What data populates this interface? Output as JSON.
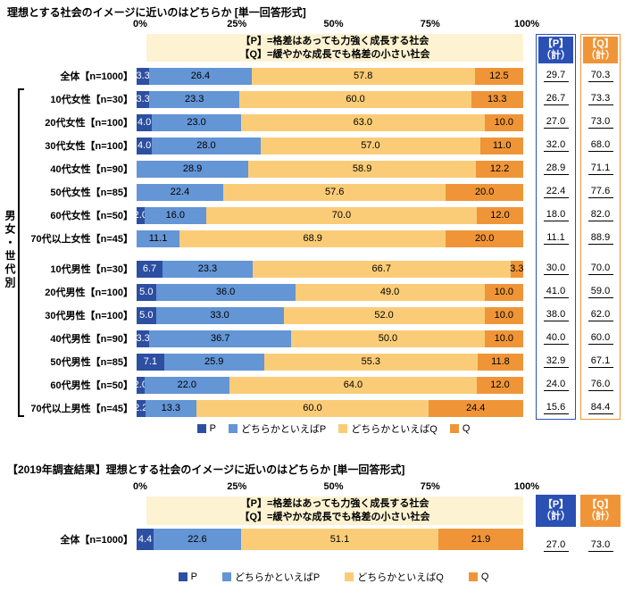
{
  "colors": {
    "series": [
      "#2d4fa2",
      "#6495d5",
      "#fbcc77",
      "#ef9538"
    ],
    "p_header": "#2b50b4",
    "q_header": "#ef9538",
    "note_bg": "#fdf3d2",
    "seg_label_on_dark": "#ffffff",
    "seg_label": "#000000"
  },
  "chart_data": [
    {
      "type": "bar",
      "stacked": true,
      "orientation": "horizontal",
      "title": "理想とする社会のイメージに近いのはどちらか [単一回答形式]",
      "x_ticks": [
        "0%",
        "25%",
        "50%",
        "75%",
        "100%"
      ],
      "xlim": [
        0,
        100
      ],
      "note_lines": [
        "【P】=格差はあっても力強く成長する社会",
        "【Q】=緩やかな成長でも格差の小さい社会"
      ],
      "series_names": [
        "P",
        "どちらかといえばP",
        "どちらかといえばQ",
        "Q"
      ],
      "legend": [
        "P",
        "どちらかといえばP",
        "どちらかといえばQ",
        "Q"
      ],
      "group_label": "男女・世代別",
      "p_total_header": [
        "【P】",
        "（計）"
      ],
      "q_total_header": [
        "【Q】",
        "（計）"
      ],
      "rows": [
        {
          "label": "全体【n=1000】",
          "values": [
            3.3,
            26.4,
            57.8,
            12.5
          ],
          "p_total": "29.7",
          "q_total": "70.3"
        },
        {
          "label": "10代女性【n=30】",
          "values": [
            3.3,
            23.3,
            60.0,
            13.3
          ],
          "p_total": "26.7",
          "q_total": "73.3"
        },
        {
          "label": "20代女性【n=100】",
          "values": [
            4.0,
            23.0,
            63.0,
            10.0
          ],
          "p_total": "27.0",
          "q_total": "73.0"
        },
        {
          "label": "30代女性【n=100】",
          "values": [
            4.0,
            28.0,
            57.0,
            11.0
          ],
          "p_total": "32.0",
          "q_total": "68.0"
        },
        {
          "label": "40代女性【n=90】",
          "values": [
            0,
            28.9,
            58.9,
            12.2
          ],
          "p_total": "28.9",
          "q_total": "71.1"
        },
        {
          "label": "50代女性【n=85】",
          "values": [
            0,
            22.4,
            57.6,
            20.0
          ],
          "p_total": "22.4",
          "q_total": "77.6"
        },
        {
          "label": "60代女性【n=50】",
          "values": [
            2.0,
            16.0,
            70.0,
            12.0
          ],
          "p_total": "18.0",
          "q_total": "82.0"
        },
        {
          "label": "70代以上女性【n=45】",
          "values": [
            0,
            11.1,
            68.9,
            20.0
          ],
          "p_total": "11.1",
          "q_total": "88.9"
        },
        {
          "label": "10代男性【n=30】",
          "values": [
            6.7,
            23.3,
            66.7,
            3.3
          ],
          "p_total": "30.0",
          "q_total": "70.0",
          "gap": true
        },
        {
          "label": "20代男性【n=100】",
          "values": [
            5.0,
            36.0,
            49.0,
            10.0
          ],
          "p_total": "41.0",
          "q_total": "59.0"
        },
        {
          "label": "30代男性【n=100】",
          "values": [
            5.0,
            33.0,
            52.0,
            10.0
          ],
          "p_total": "38.0",
          "q_total": "62.0"
        },
        {
          "label": "40代男性【n=90】",
          "values": [
            3.3,
            36.7,
            50.0,
            10.0
          ],
          "p_total": "40.0",
          "q_total": "60.0"
        },
        {
          "label": "50代男性【n=85】",
          "values": [
            7.1,
            25.9,
            55.3,
            11.8
          ],
          "p_total": "32.9",
          "q_total": "67.1"
        },
        {
          "label": "60代男性【n=50】",
          "values": [
            2.0,
            22.0,
            64.0,
            12.0
          ],
          "p_total": "24.0",
          "q_total": "76.0"
        },
        {
          "label": "70代以上男性【n=45】",
          "values": [
            2.2,
            13.3,
            60.0,
            24.4
          ],
          "p_total": "15.6",
          "q_total": "84.4"
        }
      ]
    },
    {
      "type": "bar",
      "stacked": true,
      "orientation": "horizontal",
      "title": "【2019年調査結果】理想とする社会のイメージに近いのはどちらか [単一回答形式]",
      "x_ticks": [
        "0%",
        "25%",
        "50%",
        "75%",
        "100%"
      ],
      "xlim": [
        0,
        100
      ],
      "note_lines": [
        "【P】=格差はあっても力強く成長する社会",
        "【Q】=緩やかな成長でも格差の小さい社会"
      ],
      "series_names": [
        "P",
        "どちらかといえばP",
        "どちらかといえばQ",
        "Q"
      ],
      "legend": [
        "P",
        "どちらかといえばP",
        "どちらかといえばQ",
        "Q"
      ],
      "p_total_header": [
        "【P】",
        "（計）"
      ],
      "q_total_header": [
        "【Q】",
        "（計）"
      ],
      "rows": [
        {
          "label": "全体【n=1000】",
          "values": [
            4.4,
            22.6,
            51.1,
            21.9
          ],
          "p_total": "27.0",
          "q_total": "73.0"
        }
      ]
    }
  ]
}
